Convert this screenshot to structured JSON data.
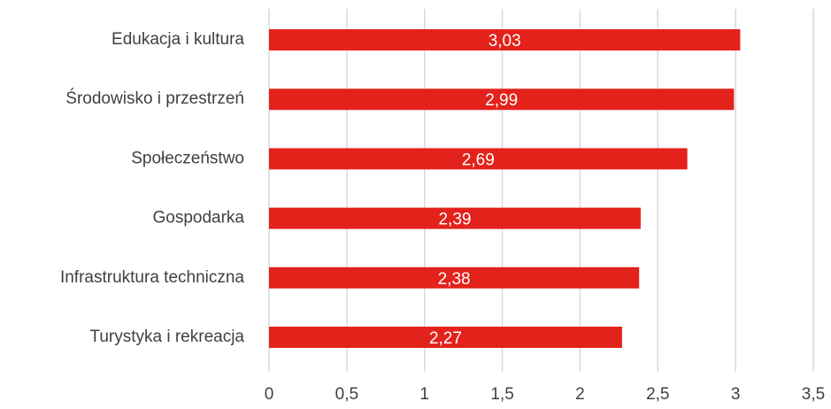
{
  "chart_data": {
    "type": "bar",
    "orientation": "horizontal",
    "categories": [
      "Edukacja i kultura",
      "Środowisko i przestrzeń",
      "Społeczeństwo",
      "Gospodarka",
      "Infrastruktura techniczna",
      "Turystyka i rekreacja"
    ],
    "values": [
      3.03,
      2.99,
      2.69,
      2.39,
      2.38,
      2.27
    ],
    "value_labels": [
      "3,03",
      "2,99",
      "2,69",
      "2,39",
      "2,38",
      "2,27"
    ],
    "color": "#e3221c",
    "xlim": [
      0,
      3.5
    ],
    "xticks": [
      0,
      {
        "value": 0.5,
        "label": "0,5"
      },
      1,
      {
        "value": 1.5,
        "label": "1,5"
      },
      2,
      {
        "value": 2.5,
        "label": "2,5"
      },
      3,
      {
        "value": 3.5,
        "label": "3,5"
      }
    ],
    "grid": true
  }
}
